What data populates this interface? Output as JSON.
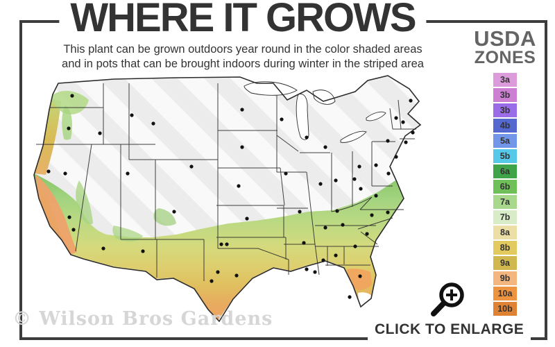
{
  "title": "WHERE IT GROWS",
  "subtitle_line1": "This plant can be grown outdoors year round in the color shaded areas",
  "subtitle_line2": "and in pots that can be brought indoors during winter in the striped area",
  "legend": {
    "title_line1": "USDA",
    "title_line2": "ZONES",
    "zones": [
      {
        "label": "3a",
        "color": "#DC9CDC"
      },
      {
        "label": "3b",
        "color": "#CD7FD2"
      },
      {
        "label": "3b",
        "color": "#9B6CE8"
      },
      {
        "label": "4b",
        "color": "#5468CF"
      },
      {
        "label": "5a",
        "color": "#7296E8"
      },
      {
        "label": "5b",
        "color": "#56C8E8"
      },
      {
        "label": "6a",
        "color": "#3FA34A"
      },
      {
        "label": "6b",
        "color": "#70C05A"
      },
      {
        "label": "7a",
        "color": "#A8D88C"
      },
      {
        "label": "7b",
        "color": "#D9ECC8"
      },
      {
        "label": "8a",
        "color": "#EBDFA6"
      },
      {
        "label": "8b",
        "color": "#E3CA5E"
      },
      {
        "label": "9a",
        "color": "#D0B84F"
      },
      {
        "label": "9b",
        "color": "#F2B67E"
      },
      {
        "label": "10a",
        "color": "#EE9440"
      },
      {
        "label": "10b",
        "color": "#E08234"
      }
    ]
  },
  "watermark": "© Wilson Bros Gardens",
  "enlarge": {
    "label": "CLICK TO ENLARGE",
    "icon": "magnifier-plus-icon"
  },
  "colors": {
    "frame": "#3c3c3c",
    "title_text": "#333333",
    "legend_title_text": "#646464",
    "watermark_text": "#d6d6d6",
    "map_striped_base": "#ececec",
    "map_stripe": "#f9f9f9",
    "map_border": "#2b2b2b",
    "city_dot": "#111111"
  }
}
